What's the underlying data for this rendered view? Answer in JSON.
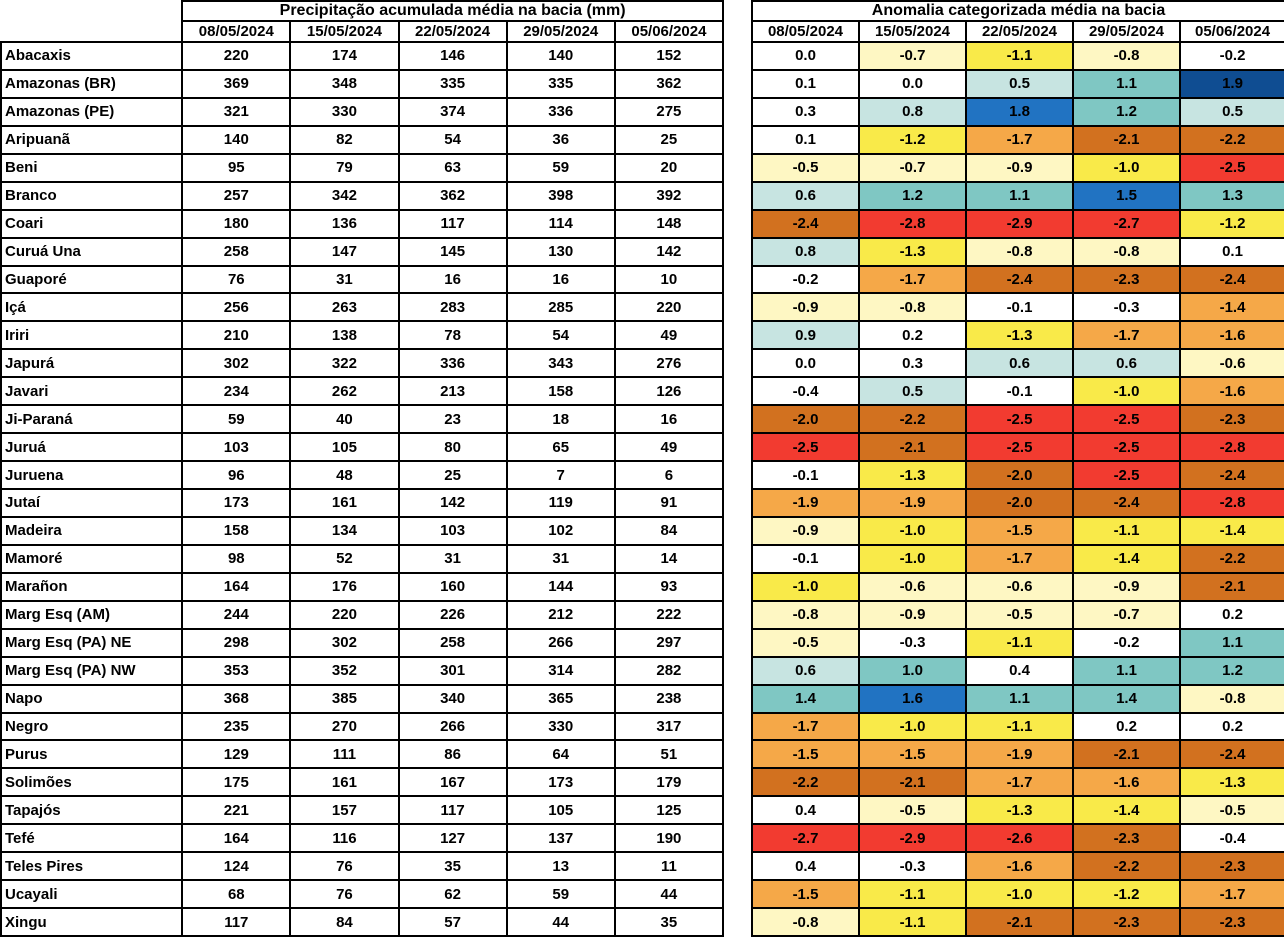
{
  "chart_data": [
    {
      "type": "table",
      "title": "Precipitação acumulada média na bacia (mm)",
      "columns": [
        "08/05/2024",
        "15/05/2024",
        "22/05/2024",
        "29/05/2024",
        "05/06/2024"
      ],
      "row_labels": [
        "Abacaxis",
        "Amazonas (BR)",
        "Amazonas (PE)",
        "Aripuanã",
        "Beni",
        "Branco",
        "Coari",
        "Curuá Una",
        "Guaporé",
        "Içá",
        "Iriri",
        "Japurá",
        "Javari",
        "Ji-Paraná",
        "Juruá",
        "Juruena",
        "Jutaí",
        "Madeira",
        "Mamoré",
        "Marañon",
        "Marg Esq (AM)",
        "Marg Esq (PA) NE",
        "Marg Esq (PA) NW",
        "Napo",
        "Negro",
        "Purus",
        "Solimões",
        "Tapajós",
        "Tefé",
        "Teles Pires",
        "Ucayali",
        "Xingu"
      ],
      "rows": [
        [
          220,
          174,
          146,
          140,
          152
        ],
        [
          369,
          348,
          335,
          335,
          362
        ],
        [
          321,
          330,
          374,
          336,
          275
        ],
        [
          140,
          82,
          54,
          36,
          25
        ],
        [
          95,
          79,
          63,
          59,
          20
        ],
        [
          257,
          342,
          362,
          398,
          392
        ],
        [
          180,
          136,
          117,
          114,
          148
        ],
        [
          258,
          147,
          145,
          130,
          142
        ],
        [
          76,
          31,
          16,
          16,
          10
        ],
        [
          256,
          263,
          283,
          285,
          220
        ],
        [
          210,
          138,
          78,
          54,
          49
        ],
        [
          302,
          322,
          336,
          343,
          276
        ],
        [
          234,
          262,
          213,
          158,
          126
        ],
        [
          59,
          40,
          23,
          18,
          16
        ],
        [
          103,
          105,
          80,
          65,
          49
        ],
        [
          96,
          48,
          25,
          7,
          6
        ],
        [
          173,
          161,
          142,
          119,
          91
        ],
        [
          158,
          134,
          103,
          102,
          84
        ],
        [
          98,
          52,
          31,
          31,
          14
        ],
        [
          164,
          176,
          160,
          144,
          93
        ],
        [
          244,
          220,
          226,
          212,
          222
        ],
        [
          298,
          302,
          258,
          266,
          297
        ],
        [
          353,
          352,
          301,
          314,
          282
        ],
        [
          368,
          385,
          340,
          365,
          238
        ],
        [
          235,
          270,
          266,
          330,
          317
        ],
        [
          129,
          111,
          86,
          64,
          51
        ],
        [
          175,
          161,
          167,
          173,
          179
        ],
        [
          221,
          157,
          117,
          105,
          125
        ],
        [
          164,
          116,
          127,
          137,
          190
        ],
        [
          124,
          76,
          35,
          13,
          11
        ],
        [
          68,
          76,
          62,
          59,
          44
        ],
        [
          117,
          84,
          57,
          44,
          35
        ]
      ]
    },
    {
      "type": "heatmap",
      "title": "Anomalia categorizada média na bacia",
      "columns": [
        "08/05/2024",
        "15/05/2024",
        "22/05/2024",
        "29/05/2024",
        "05/06/2024"
      ],
      "row_labels": [
        "Abacaxis",
        "Amazonas (BR)",
        "Amazonas (PE)",
        "Aripuanã",
        "Beni",
        "Branco",
        "Coari",
        "Curuá Una",
        "Guaporé",
        "Içá",
        "Iriri",
        "Japurá",
        "Javari",
        "Ji-Paraná",
        "Juruá",
        "Juruena",
        "Jutaí",
        "Madeira",
        "Mamoré",
        "Marañon",
        "Marg Esq (AM)",
        "Marg Esq (PA) NE",
        "Marg Esq (PA) NW",
        "Napo",
        "Negro",
        "Purus",
        "Solimões",
        "Tapajós",
        "Tefé",
        "Teles Pires",
        "Ucayali",
        "Xingu"
      ],
      "rows": [
        [
          "0.0",
          "-0.7",
          "-1.1",
          "-0.8",
          "-0.2"
        ],
        [
          "0.1",
          "0.0",
          "0.5",
          "1.1",
          "1.9"
        ],
        [
          "0.3",
          "0.8",
          "1.8",
          "1.2",
          "0.5"
        ],
        [
          "0.1",
          "-1.2",
          "-1.7",
          "-2.1",
          "-2.2"
        ],
        [
          "-0.5",
          "-0.7",
          "-0.9",
          "-1.0",
          "-2.5"
        ],
        [
          "0.6",
          "1.2",
          "1.1",
          "1.5",
          "1.3"
        ],
        [
          "-2.4",
          "-2.8",
          "-2.9",
          "-2.7",
          "-1.2"
        ],
        [
          "0.8",
          "-1.3",
          "-0.8",
          "-0.8",
          "0.1"
        ],
        [
          "-0.2",
          "-1.7",
          "-2.4",
          "-2.3",
          "-2.4"
        ],
        [
          "-0.9",
          "-0.8",
          "-0.1",
          "-0.3",
          "-1.4"
        ],
        [
          "0.9",
          "0.2",
          "-1.3",
          "-1.7",
          "-1.6"
        ],
        [
          "0.0",
          "0.3",
          "0.6",
          "0.6",
          "-0.6"
        ],
        [
          "-0.4",
          "0.5",
          "-0.1",
          "-1.0",
          "-1.6"
        ],
        [
          "-2.0",
          "-2.2",
          "-2.5",
          "-2.5",
          "-2.3"
        ],
        [
          "-2.5",
          "-2.1",
          "-2.5",
          "-2.5",
          "-2.8"
        ],
        [
          "-0.1",
          "-1.3",
          "-2.0",
          "-2.5",
          "-2.4"
        ],
        [
          "-1.9",
          "-1.9",
          "-2.0",
          "-2.4",
          "-2.8"
        ],
        [
          "-0.9",
          "-1.0",
          "-1.5",
          "-1.1",
          "-1.4"
        ],
        [
          "-0.1",
          "-1.0",
          "-1.7",
          "-1.4",
          "-2.2"
        ],
        [
          "-1.0",
          "-0.6",
          "-0.6",
          "-0.9",
          "-2.1"
        ],
        [
          "-0.8",
          "-0.9",
          "-0.5",
          "-0.7",
          "0.2"
        ],
        [
          "-0.5",
          "-0.3",
          "-1.1",
          "-0.2",
          "1.1"
        ],
        [
          "0.6",
          "1.0",
          "0.4",
          "1.1",
          "1.2"
        ],
        [
          "1.4",
          "1.6",
          "1.1",
          "1.4",
          "-0.8"
        ],
        [
          "-1.7",
          "-1.0",
          "-1.1",
          "0.2",
          "0.2"
        ],
        [
          "-1.5",
          "-1.5",
          "-1.9",
          "-2.1",
          "-2.4"
        ],
        [
          "-2.2",
          "-2.1",
          "-1.7",
          "-1.6",
          "-1.3"
        ],
        [
          "0.4",
          "-0.5",
          "-1.3",
          "-1.4",
          "-0.5"
        ],
        [
          "-2.7",
          "-2.9",
          "-2.6",
          "-2.3",
          "-0.4"
        ],
        [
          "0.4",
          "-0.3",
          "-1.6",
          "-2.2",
          "-2.3"
        ],
        [
          "-1.5",
          "-1.1",
          "-1.0",
          "-1.2",
          "-1.7"
        ],
        [
          "-0.8",
          "-1.1",
          "-2.1",
          "-2.3",
          "-2.3"
        ]
      ],
      "cell_colors": [
        [
          "white",
          "cream",
          "yellow",
          "cream",
          "white"
        ],
        [
          "white",
          "white",
          "light_teal",
          "teal",
          "navy"
        ],
        [
          "white",
          "light_teal",
          "blue",
          "teal",
          "light_teal"
        ],
        [
          "white",
          "yellow",
          "orange",
          "dark_orange",
          "dark_orange"
        ],
        [
          "cream",
          "cream",
          "cream",
          "yellow",
          "red"
        ],
        [
          "light_teal",
          "teal",
          "teal",
          "blue",
          "teal"
        ],
        [
          "dark_orange",
          "red",
          "red",
          "red",
          "yellow"
        ],
        [
          "light_teal",
          "yellow",
          "cream",
          "cream",
          "white"
        ],
        [
          "white",
          "orange",
          "dark_orange",
          "dark_orange",
          "dark_orange"
        ],
        [
          "cream",
          "cream",
          "white",
          "white",
          "orange"
        ],
        [
          "light_teal",
          "white",
          "yellow",
          "orange",
          "orange"
        ],
        [
          "white",
          "white",
          "light_teal",
          "light_teal",
          "cream"
        ],
        [
          "white",
          "light_teal",
          "white",
          "yellow",
          "orange"
        ],
        [
          "dark_orange",
          "dark_orange",
          "red",
          "red",
          "dark_orange"
        ],
        [
          "red",
          "dark_orange",
          "red",
          "red",
          "red"
        ],
        [
          "white",
          "yellow",
          "dark_orange",
          "red",
          "dark_orange"
        ],
        [
          "orange",
          "orange",
          "dark_orange",
          "dark_orange",
          "red"
        ],
        [
          "cream",
          "yellow",
          "orange",
          "yellow",
          "yellow"
        ],
        [
          "white",
          "yellow",
          "orange",
          "yellow",
          "dark_orange"
        ],
        [
          "yellow",
          "cream",
          "cream",
          "cream",
          "dark_orange"
        ],
        [
          "cream",
          "cream",
          "cream",
          "cream",
          "white"
        ],
        [
          "cream",
          "white",
          "yellow",
          "white",
          "teal"
        ],
        [
          "light_teal",
          "teal",
          "white",
          "teal",
          "teal"
        ],
        [
          "teal",
          "blue",
          "teal",
          "teal",
          "cream"
        ],
        [
          "orange",
          "yellow",
          "yellow",
          "white",
          "white"
        ],
        [
          "orange",
          "orange",
          "orange",
          "dark_orange",
          "dark_orange"
        ],
        [
          "dark_orange",
          "dark_orange",
          "orange",
          "orange",
          "yellow"
        ],
        [
          "white",
          "cream",
          "yellow",
          "yellow",
          "cream"
        ],
        [
          "red",
          "red",
          "red",
          "dark_orange",
          "white"
        ],
        [
          "white",
          "white",
          "orange",
          "dark_orange",
          "dark_orange"
        ],
        [
          "orange",
          "yellow",
          "yellow",
          "yellow",
          "orange"
        ],
        [
          "cream",
          "yellow",
          "dark_orange",
          "dark_orange",
          "dark_orange"
        ]
      ],
      "palette": {
        "white": "#FFFFFF",
        "cream": "#FEF7C3",
        "yellow": "#F9EA49",
        "orange": "#F5A848",
        "dark_orange": "#D2711F",
        "red": "#F23B30",
        "light_teal": "#C7E4E1",
        "teal": "#7FC7C3",
        "blue": "#2173C2",
        "navy": "#0F4D92"
      }
    }
  ]
}
